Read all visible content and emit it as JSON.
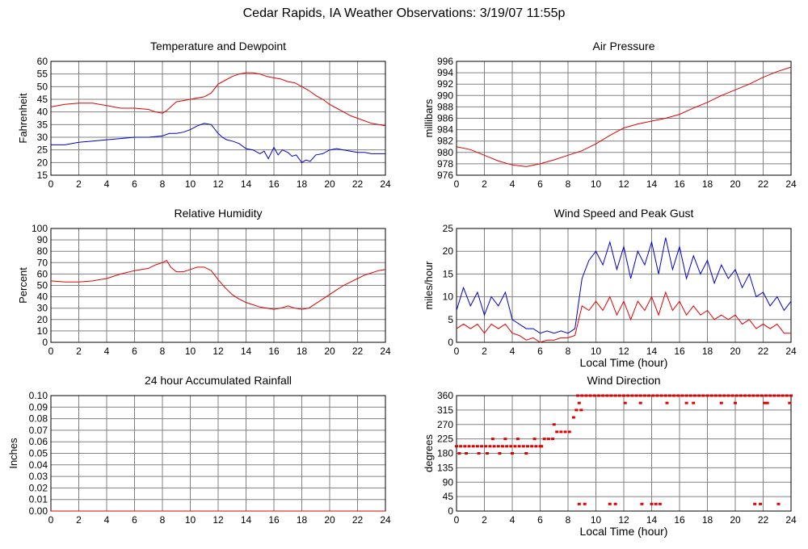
{
  "title": "Cedar Rapids, IA Weather Observations: 3/19/07 11:55p",
  "colors": {
    "red": "#e00000",
    "blue": "#0000c8",
    "grid": "#808080"
  },
  "chart_data": [
    {
      "id": "temp",
      "type": "line",
      "title": "Temperature and Dewpoint",
      "xlabel": "",
      "ylabel": "Fahrenheit",
      "xlim": [
        0,
        24
      ],
      "ylim": [
        15,
        60
      ],
      "xticks": [
        0,
        2,
        4,
        6,
        8,
        10,
        12,
        14,
        16,
        18,
        20,
        22,
        24
      ],
      "yticks": [
        15,
        20,
        25,
        30,
        35,
        40,
        45,
        50,
        55,
        60
      ],
      "series": [
        {
          "color": "#e00000",
          "x": [
            0,
            1,
            2,
            3,
            4,
            5,
            6,
            7,
            7.5,
            8,
            8.3,
            8.6,
            9,
            9.5,
            10,
            10.5,
            11,
            11.5,
            12,
            12.5,
            13,
            13.5,
            14,
            14.5,
            15,
            15.5,
            16,
            16.5,
            17,
            17.5,
            18,
            18.5,
            19,
            19.5,
            20,
            20.5,
            21,
            21.5,
            22,
            22.5,
            23,
            23.5,
            24
          ],
          "y": [
            42,
            43,
            43.5,
            43.5,
            42.5,
            41.5,
            41.5,
            41,
            40,
            39.5,
            40.5,
            42,
            44,
            44.5,
            45,
            45.5,
            46,
            47.5,
            51,
            52.5,
            54,
            55,
            55.5,
            55.5,
            55,
            54,
            53.5,
            53,
            52,
            51.5,
            50,
            48.5,
            46.5,
            45,
            43,
            41.5,
            40,
            38.5,
            37.5,
            36.5,
            35.5,
            35,
            34.5
          ]
        },
        {
          "color": "#0000c8",
          "x": [
            0,
            1,
            2,
            3,
            4,
            5,
            6,
            7,
            8,
            8.5,
            9,
            9.5,
            10,
            10.5,
            11,
            11.5,
            12,
            12.3,
            12.6,
            13,
            13.5,
            14,
            14.5,
            15,
            15.3,
            15.6,
            16,
            16.3,
            16.6,
            17,
            17.3,
            17.6,
            18,
            18.3,
            18.6,
            19,
            19.5,
            20,
            20.5,
            21,
            21.5,
            22,
            22.5,
            23,
            23.5,
            24
          ],
          "y": [
            27,
            27,
            28,
            28.5,
            29,
            29.5,
            30,
            30,
            30.5,
            31.5,
            31.5,
            32,
            33,
            34.5,
            35.5,
            35,
            31.5,
            30,
            29,
            28.5,
            27.5,
            25.5,
            25,
            23.5,
            24.5,
            21.5,
            26,
            23,
            25,
            24,
            22.5,
            23,
            20,
            21,
            20.5,
            23,
            23.5,
            25,
            25.5,
            25,
            24.5,
            24,
            24,
            23.5,
            23.5,
            23.5
          ]
        }
      ]
    },
    {
      "id": "pressure",
      "type": "line",
      "title": "Air Pressure",
      "xlabel": "",
      "ylabel": "millibars",
      "xlim": [
        0,
        24
      ],
      "ylim": [
        976,
        996
      ],
      "xticks": [
        0,
        2,
        4,
        6,
        8,
        10,
        12,
        14,
        16,
        18,
        20,
        22,
        24
      ],
      "yticks": [
        976,
        978,
        980,
        982,
        984,
        986,
        988,
        990,
        992,
        994,
        996
      ],
      "series": [
        {
          "color": "#e00000",
          "x": [
            0,
            1,
            2,
            3,
            4,
            5,
            6,
            7,
            8,
            9,
            10,
            11,
            12,
            13,
            14,
            15,
            16,
            17,
            18,
            19,
            20,
            21,
            22,
            23,
            24
          ],
          "y": [
            981,
            980.5,
            979.5,
            978.5,
            977.8,
            977.5,
            978,
            978.7,
            979.5,
            980.3,
            981.5,
            983,
            984.3,
            985,
            985.5,
            986,
            986.7,
            987.8,
            988.8,
            990,
            991,
            992,
            993.2,
            994.2,
            995
          ]
        }
      ]
    },
    {
      "id": "humidity",
      "type": "line",
      "title": "Relative Humidity",
      "xlabel": "",
      "ylabel": "Percent",
      "xlim": [
        0,
        24
      ],
      "ylim": [
        0,
        100
      ],
      "xticks": [
        0,
        2,
        4,
        6,
        8,
        10,
        12,
        14,
        16,
        18,
        20,
        22,
        24
      ],
      "yticks": [
        0,
        10,
        20,
        30,
        40,
        50,
        60,
        70,
        80,
        90,
        100
      ],
      "series": [
        {
          "color": "#e00000",
          "x": [
            0,
            1,
            2,
            3,
            4,
            5,
            6,
            7,
            7.5,
            8,
            8.3,
            8.6,
            9,
            9.5,
            10,
            10.5,
            11,
            11.5,
            12,
            12.5,
            13,
            13.5,
            14,
            14.5,
            15,
            15.5,
            16,
            16.5,
            17,
            17.5,
            18,
            18.5,
            19,
            19.5,
            20,
            20.5,
            21,
            21.5,
            22,
            22.5,
            23,
            23.5,
            24
          ],
          "y": [
            54,
            53,
            53,
            54,
            56,
            60,
            63,
            65,
            68,
            70,
            72,
            66,
            62,
            62,
            64,
            66,
            66,
            63,
            55,
            48,
            42,
            38,
            35,
            33,
            31,
            30,
            29,
            30,
            32,
            30,
            29,
            30,
            34,
            38,
            42,
            46,
            50,
            53,
            56,
            59,
            61,
            63,
            64
          ]
        }
      ]
    },
    {
      "id": "wind",
      "type": "line",
      "title": "Wind Speed and Peak Gust",
      "xlabel": "Local Time (hour)",
      "ylabel": "miles/hour",
      "xlim": [
        0,
        24
      ],
      "ylim": [
        0,
        25
      ],
      "xticks": [
        0,
        2,
        4,
        6,
        8,
        10,
        12,
        14,
        16,
        18,
        20,
        22,
        24
      ],
      "yticks": [
        0,
        5,
        10,
        15,
        20,
        25
      ],
      "series": [
        {
          "color": "#0000c8",
          "x": [
            0,
            0.5,
            1,
            1.5,
            2,
            2.5,
            3,
            3.5,
            4,
            4.5,
            5,
            5.5,
            6,
            6.5,
            7,
            7.5,
            8,
            8.5,
            9,
            9.5,
            10,
            10.5,
            11,
            11.5,
            12,
            12.5,
            13,
            13.5,
            14,
            14.5,
            15,
            15.5,
            16,
            16.5,
            17,
            17.5,
            18,
            18.5,
            19,
            19.5,
            20,
            20.5,
            21,
            21.5,
            22,
            22.5,
            23,
            23.5,
            24
          ],
          "y": [
            7,
            12,
            8,
            11,
            6,
            10,
            8,
            11,
            5,
            4,
            3,
            3,
            2,
            2.5,
            2,
            2.5,
            2,
            3,
            14,
            18,
            20,
            17,
            22,
            16,
            21,
            14,
            20,
            17,
            22,
            15,
            23,
            16,
            21,
            14,
            19,
            15,
            18,
            13,
            17,
            14,
            16,
            12,
            15,
            10,
            11,
            8,
            10,
            7,
            9
          ]
        },
        {
          "color": "#e00000",
          "x": [
            0,
            0.5,
            1,
            1.5,
            2,
            2.5,
            3,
            3.5,
            4,
            4.5,
            5,
            5.5,
            6,
            6.5,
            7,
            7.5,
            8,
            8.5,
            9,
            9.5,
            10,
            10.5,
            11,
            11.5,
            12,
            12.5,
            13,
            13.5,
            14,
            14.5,
            15,
            15.5,
            16,
            16.5,
            17,
            17.5,
            18,
            18.5,
            19,
            19.5,
            20,
            20.5,
            21,
            21.5,
            22,
            22.5,
            23,
            23.5,
            24
          ],
          "y": [
            3,
            4,
            3,
            4,
            2,
            4,
            3,
            4,
            2,
            1.5,
            0.5,
            1,
            0,
            0.5,
            0.5,
            1,
            1,
            1.5,
            8,
            7,
            9,
            7,
            10,
            6,
            9,
            5,
            9,
            7,
            10,
            6,
            11,
            7,
            9,
            6,
            8,
            6,
            7,
            5,
            6,
            5,
            6,
            4,
            5,
            3,
            4,
            3,
            4,
            2,
            2
          ]
        }
      ]
    },
    {
      "id": "rain",
      "type": "line",
      "title": "24 hour Accumulated Rainfall",
      "xlabel": "",
      "ylabel": "Inches",
      "xlim": [
        0,
        24
      ],
      "ylim": [
        0,
        0.1
      ],
      "xticks": [
        0,
        2,
        4,
        6,
        8,
        10,
        12,
        14,
        16,
        18,
        20,
        22,
        24
      ],
      "yticks": [
        "0.00",
        "0.01",
        "0.02",
        "0.03",
        "0.04",
        "0.05",
        "0.06",
        "0.07",
        "0.08",
        "0.09",
        "0.10"
      ],
      "series": [
        {
          "color": "#e00000",
          "x": [
            0,
            24
          ],
          "y": [
            0,
            0
          ]
        }
      ]
    },
    {
      "id": "winddir",
      "type": "scatter",
      "title": "Wind Direction",
      "xlabel": "Local Time (hour)",
      "ylabel": "degrees",
      "xlim": [
        0,
        24
      ],
      "ylim": [
        0,
        360
      ],
      "xticks": [
        0,
        2,
        4,
        6,
        8,
        10,
        12,
        14,
        16,
        18,
        20,
        22,
        24
      ],
      "yticks": [
        0,
        45,
        90,
        135,
        180,
        225,
        270,
        315,
        360
      ],
      "series": [
        {
          "color": "#e00000",
          "x": [
            0,
            0.3,
            0.6,
            0.9,
            1.2,
            1.5,
            1.8,
            2.1,
            2.4,
            2.7,
            3.0,
            3.3,
            3.6,
            3.9,
            4.2,
            4.5,
            4.8,
            5.1,
            5.4,
            5.7,
            6.0,
            6.3,
            6.6,
            6.9,
            7.2,
            7.5,
            7.8,
            8.1,
            8.4,
            8.7,
            9.0,
            9.3,
            9.6,
            9.9,
            10.2,
            10.5,
            10.8,
            11.1,
            11.4,
            11.7,
            12.0,
            12.3,
            12.6,
            12.9,
            13.2,
            13.5,
            13.8,
            14.1,
            14.4,
            14.7,
            15.0,
            15.3,
            15.6,
            15.9,
            16.2,
            16.5,
            16.8,
            17.1,
            17.4,
            17.7,
            18.0,
            18.3,
            18.6,
            18.9,
            19.2,
            19.5,
            19.8,
            20.1,
            20.4,
            20.7,
            21.0,
            21.3,
            21.6,
            21.9,
            22.2,
            22.5,
            22.8,
            23.1,
            23.4,
            23.7,
            24.0,
            0.2,
            0.7,
            1.6,
            2.2,
            2.6,
            3.1,
            3.5,
            4.0,
            4.4,
            5.0,
            5.6,
            6.1,
            7.0,
            8.6,
            8.8,
            9.2,
            11.0,
            11.4,
            13.3,
            14.0,
            14.3,
            14.6,
            12.1,
            13.2,
            15.1,
            16.5,
            17.0,
            19.0,
            20.0,
            21.4,
            21.8,
            22.1,
            22.3,
            23.1,
            23.9,
            8.8,
            8.95
          ],
          "y": [
            202,
            202,
            202,
            202,
            202,
            202,
            202,
            202,
            202,
            202,
            202,
            202,
            202,
            202,
            202,
            202,
            202,
            202,
            202,
            202,
            202,
            225,
            225,
            225,
            247,
            247,
            247,
            247,
            292,
            360,
            360,
            360,
            360,
            360,
            360,
            360,
            360,
            360,
            360,
            360,
            360,
            360,
            360,
            360,
            360,
            360,
            360,
            360,
            360,
            360,
            360,
            360,
            360,
            360,
            360,
            360,
            360,
            360,
            360,
            360,
            360,
            360,
            360,
            360,
            360,
            360,
            360,
            360,
            360,
            360,
            360,
            360,
            360,
            360,
            360,
            360,
            360,
            360,
            360,
            360,
            360,
            180,
            180,
            180,
            180,
            225,
            180,
            225,
            180,
            225,
            180,
            225,
            202,
            270,
            315,
            337,
            22,
            22,
            22,
            22,
            22,
            22,
            22,
            337,
            337,
            337,
            337,
            337,
            337,
            337,
            22,
            22,
            337,
            337,
            22,
            337,
            22,
            315
          ]
        }
      ]
    }
  ]
}
